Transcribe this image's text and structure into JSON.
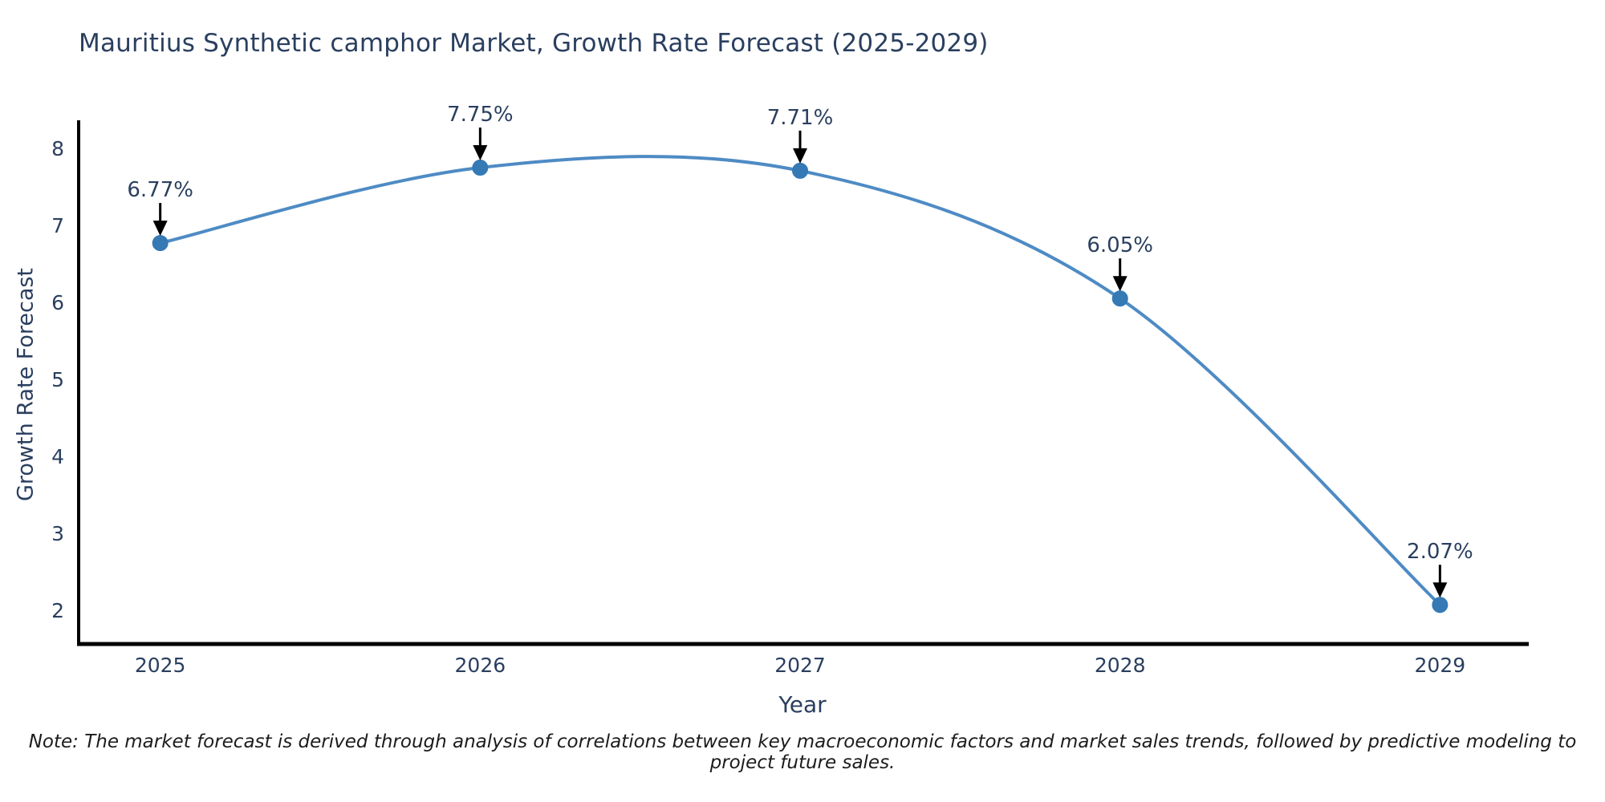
{
  "title": "Mauritius Synthetic camphor Market, Growth Rate Forecast (2025-2029)",
  "note": "Note: The market forecast is derived through analysis of correlations between key macroeconomic factors and market sales trends, followed by predictive modeling to project future sales.",
  "chart_data": {
    "type": "line",
    "curve": "spline",
    "title": "Mauritius Synthetic camphor Market, Growth Rate Forecast (2025-2029)",
    "xlabel": "Year",
    "ylabel": "Growth Rate Forecast",
    "x": [
      2025,
      2026,
      2027,
      2028,
      2029
    ],
    "series": [
      {
        "name": "Growth Rate Forecast",
        "values": [
          6.77,
          7.75,
          7.71,
          6.05,
          2.07
        ]
      }
    ],
    "point_labels": [
      "6.77%",
      "7.75%",
      "7.71%",
      "6.05%",
      "2.07%"
    ],
    "xticks": [
      "2025",
      "2026",
      "2027",
      "2028",
      "2029"
    ],
    "yticks": [
      2,
      3,
      4,
      5,
      6,
      7,
      8
    ],
    "ylim": [
      2,
      8
    ],
    "grid": false,
    "legend": "none",
    "colors": {
      "line": "#4e8bc4",
      "marker": "#3579b5",
      "axis": "#000000",
      "text": "#2a3f5f",
      "annotation_arrow": "#000000",
      "background": "#ffffff"
    }
  }
}
